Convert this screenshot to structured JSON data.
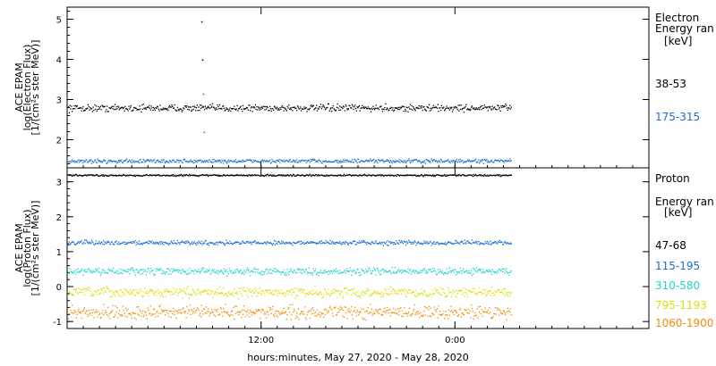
{
  "xaxis": {
    "title": "hours:minutes, May 27, 2020 - May 28, 2020",
    "start_hour": 0,
    "end_hour": 36,
    "data_end_hour": 27.5,
    "ticks": [
      {
        "hour": 12,
        "label": "12:00"
      },
      {
        "hour": 24,
        "label": "0:00"
      }
    ]
  },
  "colors": {
    "black": "#000000",
    "blue": "#1a6fd0",
    "cyan": "#22d3c8",
    "yellow": "#dede00",
    "orange": "#f28c00"
  },
  "chart_data": [
    {
      "type": "scatter",
      "panel": "electron",
      "ylabel": [
        "ACE EPAM",
        "log(Electron Flux)",
        "[1/(cm²s ster MeV)]"
      ],
      "ylim": [
        1.3,
        5.3
      ],
      "yticks": [
        2,
        3,
        4,
        5
      ],
      "legend_title": [
        "Electron",
        "Energy ran",
        "[keV]"
      ],
      "series": [
        {
          "name": "38-53",
          "color": "#000000",
          "mean": 2.8,
          "spread": 0.07
        },
        {
          "name": "175-315",
          "color": "#1a6fd0",
          "mean": 1.48,
          "spread": 0.04
        }
      ],
      "spikes": [
        {
          "hour": 8.3,
          "y": 4.95,
          "color": "#000000"
        },
        {
          "hour": 8.35,
          "y": 4.0,
          "color": "#000000"
        },
        {
          "hour": 8.4,
          "y": 3.15,
          "color": "#1a6fd0"
        },
        {
          "hour": 8.45,
          "y": 2.2,
          "color": "#1a6fd0"
        }
      ]
    },
    {
      "type": "scatter",
      "panel": "proton",
      "ylabel": [
        "ACE EPAM",
        "log(Proton Flux)",
        "[1/(cm²s ster MeV)]"
      ],
      "ylim": [
        -1.2,
        3.4
      ],
      "yticks": [
        -1,
        0,
        1,
        2,
        3
      ],
      "legend_title": [
        "Proton",
        "Energy ran",
        "[keV]"
      ],
      "series": [
        {
          "name": "47-68",
          "color": "#000000",
          "mean": 3.2,
          "spread": 0.02
        },
        {
          "name": "115-195",
          "color": "#1a6fd0",
          "mean": 1.27,
          "spread": 0.05
        },
        {
          "name": "310-580",
          "color": "#22d3c8",
          "mean": 0.45,
          "spread": 0.08
        },
        {
          "name": "795-1193",
          "color": "#dede00",
          "mean": -0.15,
          "spread": 0.11
        },
        {
          "name": "1060-1900",
          "color": "#f28c00",
          "mean": -0.72,
          "spread": 0.15
        }
      ]
    }
  ]
}
